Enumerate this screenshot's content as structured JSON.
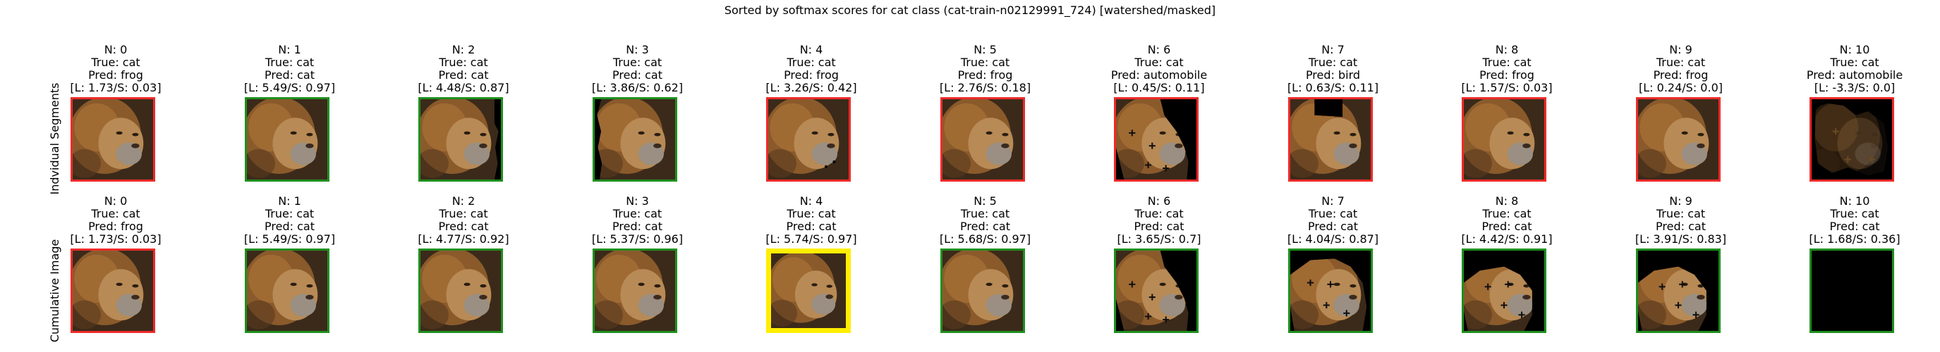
{
  "figure": {
    "title": "Sorted by softmax scores for cat class (cat-train-n02129991_724) [watershed/masked]"
  },
  "colors": {
    "correct": "#1f8f1f",
    "incorrect": "#ee2a2a",
    "highlight": "#ffee00",
    "background": "#000000"
  },
  "rows": [
    {
      "label": "Indvidual Segments",
      "panels": [
        {
          "n": "N: 0",
          "true": "True: cat",
          "pred": "Pred: frog",
          "score": "[L: 1.73/S: 0.03]",
          "border": "incorrect",
          "mask": "full"
        },
        {
          "n": "N: 1",
          "true": "True: cat",
          "pred": "Pred: cat",
          "score": "[L: 5.49/S: 0.97]",
          "border": "correct",
          "mask": "full"
        },
        {
          "n": "N: 2",
          "true": "True: cat",
          "pred": "Pred: cat",
          "score": "[L: 4.48/S: 0.87]",
          "border": "correct",
          "mask": "right-edge"
        },
        {
          "n": "N: 3",
          "true": "True: cat",
          "pred": "Pred: cat",
          "score": "[L: 3.86/S: 0.62]",
          "border": "correct",
          "mask": "left-edge"
        },
        {
          "n": "N: 4",
          "true": "True: cat",
          "pred": "Pred: frog",
          "score": "[L: 3.26/S: 0.42]",
          "border": "incorrect",
          "mask": "full-dots"
        },
        {
          "n": "N: 5",
          "true": "True: cat",
          "pred": "Pred: frog",
          "score": "[L: 2.76/S: 0.18]",
          "border": "incorrect",
          "mask": "full"
        },
        {
          "n": "N: 6",
          "true": "True: cat",
          "pred": "Pred: automobile",
          "score": "[L: 0.45/S: 0.11]",
          "border": "incorrect",
          "mask": "segment-a"
        },
        {
          "n": "N: 7",
          "true": "True: cat",
          "pred": "Pred: bird",
          "score": "[L: 0.63/S: 0.11]",
          "border": "incorrect",
          "mask": "top-hole"
        },
        {
          "n": "N: 8",
          "true": "True: cat",
          "pred": "Pred: frog",
          "score": "[L: 1.57/S: 0.03]",
          "border": "incorrect",
          "mask": "full"
        },
        {
          "n": "N: 9",
          "true": "True: cat",
          "pred": "Pred: frog",
          "score": "[L: 0.24/S: 0.0]",
          "border": "incorrect",
          "mask": "full"
        },
        {
          "n": "N: 10",
          "true": "True: cat",
          "pred": "Pred: automobile",
          "score": "[L: -3.3/S: 0.0]",
          "border": "incorrect",
          "mask": "dark-sparse"
        }
      ]
    },
    {
      "label": "Cumulative Image",
      "panels": [
        {
          "n": "N: 0",
          "true": "True: cat",
          "pred": "Pred: frog",
          "score": "[L: 1.73/S: 0.03]",
          "border": "incorrect",
          "mask": "full"
        },
        {
          "n": "N: 1",
          "true": "True: cat",
          "pred": "Pred: cat",
          "score": "[L: 5.49/S: 0.97]",
          "border": "correct",
          "mask": "full"
        },
        {
          "n": "N: 2",
          "true": "True: cat",
          "pred": "Pred: cat",
          "score": "[L: 4.77/S: 0.92]",
          "border": "correct",
          "mask": "full"
        },
        {
          "n": "N: 3",
          "true": "True: cat",
          "pred": "Pred: cat",
          "score": "[L: 5.37/S: 0.96]",
          "border": "correct",
          "mask": "full"
        },
        {
          "n": "N: 4",
          "true": "True: cat",
          "pred": "Pred: cat",
          "score": "[L: 5.74/S: 0.97]",
          "border": "highlight",
          "mask": "full"
        },
        {
          "n": "N: 5",
          "true": "True: cat",
          "pred": "Pred: cat",
          "score": "[L: 5.68/S: 0.97]",
          "border": "correct",
          "mask": "full"
        },
        {
          "n": "N: 6",
          "true": "True: cat",
          "pred": "Pred: cat",
          "score": "[L: 3.65/S: 0.7]",
          "border": "correct",
          "mask": "segment-a"
        },
        {
          "n": "N: 7",
          "true": "True: cat",
          "pred": "Pred: cat",
          "score": "[L: 4.04/S: 0.87]",
          "border": "correct",
          "mask": "segment-b"
        },
        {
          "n": "N: 8",
          "true": "True: cat",
          "pred": "Pred: cat",
          "score": "[L: 4.42/S: 0.91]",
          "border": "correct",
          "mask": "segment-c"
        },
        {
          "n": "N: 9",
          "true": "True: cat",
          "pred": "Pred: cat",
          "score": "[L: 3.91/S: 0.83]",
          "border": "correct",
          "mask": "segment-c"
        },
        {
          "n": "N: 10",
          "true": "True: cat",
          "pred": "Pred: cat",
          "score": "[L: 1.68/S: 0.36]",
          "border": "correct",
          "mask": "empty"
        }
      ]
    }
  ],
  "chart_data": {
    "type": "table",
    "title": "Sorted by softmax scores for cat class (cat-train-n02129991_724) [watershed/masked]",
    "columns": [
      "N",
      "True",
      "Pred",
      "L",
      "S"
    ],
    "series": [
      {
        "name": "Indvidual Segments",
        "n": [
          0,
          1,
          2,
          3,
          4,
          5,
          6,
          7,
          8,
          9,
          10
        ],
        "true": [
          "cat",
          "cat",
          "cat",
          "cat",
          "cat",
          "cat",
          "cat",
          "cat",
          "cat",
          "cat",
          "cat"
        ],
        "pred": [
          "frog",
          "cat",
          "cat",
          "cat",
          "frog",
          "frog",
          "automobile",
          "bird",
          "frog",
          "frog",
          "automobile"
        ],
        "L": [
          1.73,
          5.49,
          4.48,
          3.86,
          3.26,
          2.76,
          0.45,
          0.63,
          1.57,
          0.24,
          -3.3
        ],
        "S": [
          0.03,
          0.97,
          0.87,
          0.62,
          0.42,
          0.18,
          0.11,
          0.11,
          0.03,
          0.0,
          0.0
        ]
      },
      {
        "name": "Cumulative Image",
        "n": [
          0,
          1,
          2,
          3,
          4,
          5,
          6,
          7,
          8,
          9,
          10
        ],
        "true": [
          "cat",
          "cat",
          "cat",
          "cat",
          "cat",
          "cat",
          "cat",
          "cat",
          "cat",
          "cat",
          "cat"
        ],
        "pred": [
          "frog",
          "cat",
          "cat",
          "cat",
          "cat",
          "cat",
          "cat",
          "cat",
          "cat",
          "cat",
          "cat"
        ],
        "L": [
          1.73,
          5.49,
          4.77,
          5.37,
          5.74,
          5.68,
          3.65,
          4.04,
          4.42,
          3.91,
          1.68
        ],
        "S": [
          0.03,
          0.97,
          0.92,
          0.96,
          0.97,
          0.97,
          0.7,
          0.87,
          0.91,
          0.83,
          0.36
        ]
      }
    ]
  }
}
